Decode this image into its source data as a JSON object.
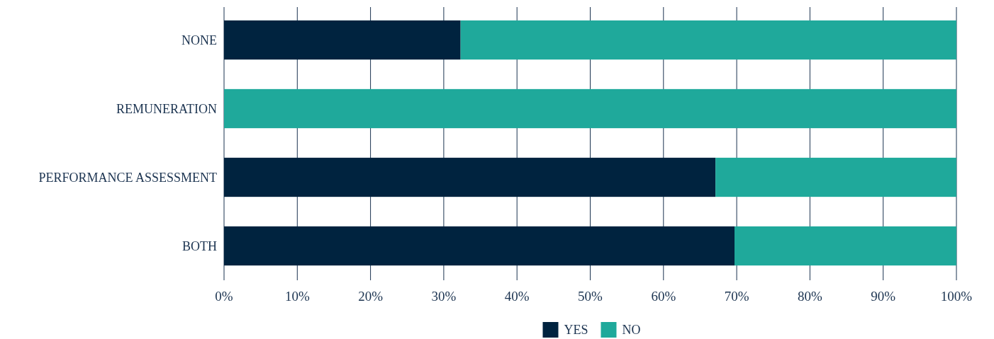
{
  "chart_data": {
    "type": "bar",
    "orientation": "horizontal",
    "stacked": true,
    "categories": [
      "NONE",
      "REMUNERATION",
      "PERFORMANCE ASSESSMENT",
      "BOTH"
    ],
    "series": [
      {
        "name": "YES",
        "color": "#00233f",
        "values": [
          32.3,
          0,
          67.1,
          69.7
        ]
      },
      {
        "name": "NO",
        "color": "#1fa99b",
        "values": [
          67.7,
          100,
          32.9,
          30.3
        ]
      }
    ],
    "xlim": [
      0,
      100
    ],
    "xticks": [
      {
        "value": 0,
        "label": "0%"
      },
      {
        "value": 10,
        "label": "10%"
      },
      {
        "value": 20,
        "label": "20%"
      },
      {
        "value": 30,
        "label": "30%"
      },
      {
        "value": 40,
        "label": "40%"
      },
      {
        "value": 50,
        "label": "50%"
      },
      {
        "value": 60,
        "label": "60%"
      },
      {
        "value": 70,
        "label": "70%"
      },
      {
        "value": 80,
        "label": "80%"
      },
      {
        "value": 90,
        "label": "90%"
      },
      {
        "value": 100,
        "label": "100%"
      }
    ],
    "grid": "x",
    "legend": "bottom"
  }
}
